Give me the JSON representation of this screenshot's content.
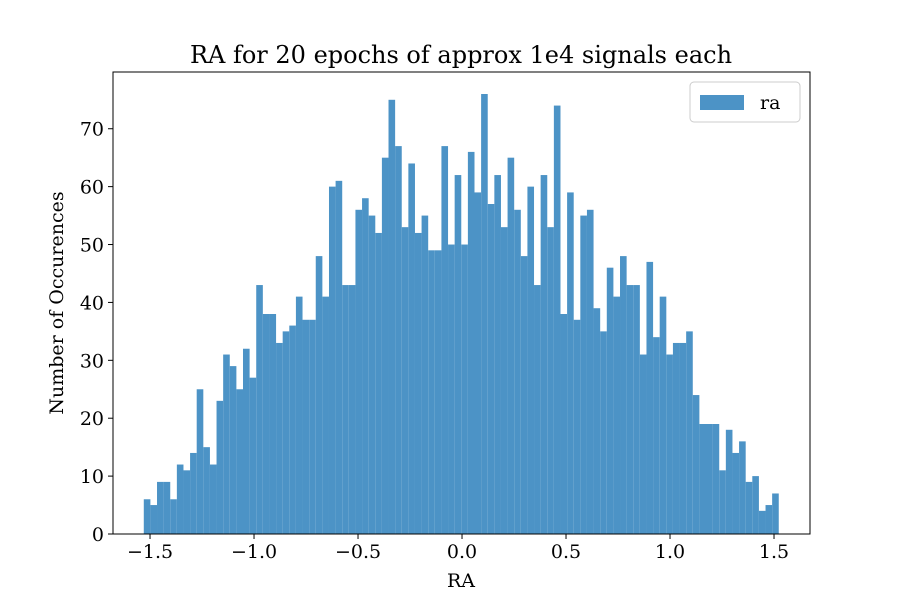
{
  "chart_data": {
    "type": "histogram",
    "title": "RA for 20 epochs of approx 1e4 signals each",
    "xlabel": "RA",
    "ylabel": "Number of Occurences",
    "bins": [
      -1.53,
      -1.4982,
      -1.4664,
      -1.4346,
      -1.4028,
      -1.371,
      -1.3392,
      -1.3074,
      -1.2756,
      -1.2438,
      -1.212,
      -1.1802,
      -1.1484,
      -1.1166,
      -1.0848,
      -1.053,
      -1.0212,
      -0.9894,
      -0.9576,
      -0.9258,
      -0.894,
      -0.8622,
      -0.8304,
      -0.7986,
      -0.7668,
      -0.735,
      -0.7032,
      -0.6714,
      -0.6396,
      -0.6078,
      -0.576,
      -0.5442,
      -0.5124,
      -0.4806,
      -0.4488,
      -0.417,
      -0.3852,
      -0.3534,
      -0.3216,
      -0.2898,
      -0.258,
      -0.2262,
      -0.1944,
      -0.1626,
      -0.1308,
      -0.099,
      -0.0672,
      -0.0354,
      -0.0036,
      0.0282,
      0.06,
      0.0918,
      0.1236,
      0.1554,
      0.1872,
      0.219,
      0.2508,
      0.2826,
      0.3144,
      0.3462,
      0.378,
      0.4098,
      0.4416,
      0.4734,
      0.5052,
      0.537,
      0.5688,
      0.6006,
      0.6324,
      0.6642,
      0.696,
      0.7278,
      0.7596,
      0.7914,
      0.8232,
      0.855,
      0.8868,
      0.9186,
      0.9504,
      0.9822,
      1.014,
      1.0458,
      1.0776,
      1.1094,
      1.1412,
      1.173,
      1.2048,
      1.2366,
      1.2684,
      1.3002,
      1.332,
      1.3638,
      1.3956,
      1.4274,
      1.4592,
      1.491,
      1.5228
    ],
    "series": [
      {
        "name": "ra",
        "color": "#4c93c6",
        "values": [
          6,
          5,
          9,
          9,
          6,
          12,
          11,
          14,
          25,
          15,
          12,
          23,
          31,
          29,
          25,
          32,
          27,
          43,
          38,
          38,
          33,
          35,
          36,
          41,
          37,
          37,
          48,
          41,
          60,
          61,
          43,
          43,
          56,
          58,
          55,
          52,
          65,
          75,
          67,
          53,
          64,
          52,
          55,
          49,
          49,
          67,
          50,
          62,
          50,
          66,
          59,
          76,
          57,
          62,
          53,
          65,
          56,
          48,
          60,
          43,
          62,
          53,
          74,
          38,
          59,
          37,
          55,
          56,
          39,
          35,
          46,
          41,
          48,
          43,
          43,
          31,
          47,
          34,
          41,
          31,
          33,
          33,
          35,
          24,
          19,
          19,
          19,
          11,
          18,
          14,
          16,
          9,
          10,
          4,
          5,
          7
        ]
      }
    ],
    "xlim": [
      -1.678,
      1.673
    ],
    "ylim": [
      0,
      79.8
    ],
    "xticks": [
      {
        "value": -1.5,
        "label": "−1.5"
      },
      {
        "value": -1.0,
        "label": "−1.0"
      },
      {
        "value": -0.5,
        "label": "−0.5"
      },
      {
        "value": 0.0,
        "label": "0.0"
      },
      0.5,
      {
        "value": 1.0,
        "label": "1.0"
      },
      1.5
    ],
    "yticks": [
      0,
      10,
      20,
      30,
      40,
      50,
      60,
      70
    ],
    "legend": "upper right"
  }
}
